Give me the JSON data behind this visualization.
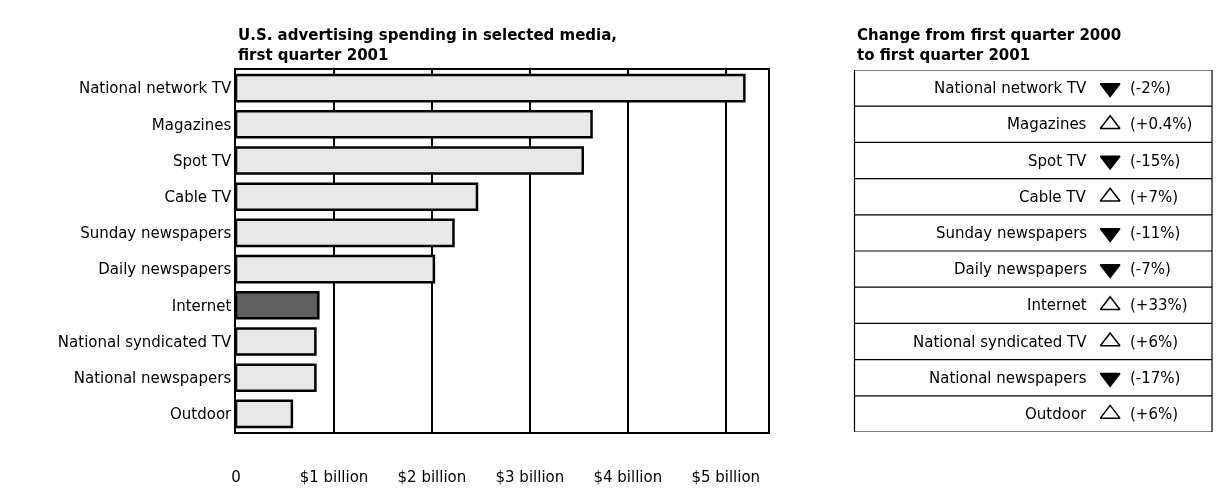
{
  "chart_data": [
    {
      "type": "bar",
      "orientation": "horizontal",
      "title": "U.S. advertising spending in selected media,\nfirst quarter 2001",
      "categories": [
        "National network TV",
        "Magazines",
        "Spot TV",
        "Cable TV",
        "Sunday newspapers",
        "Daily newspapers",
        "Internet",
        "National syndicated TV",
        "National newspapers",
        "Outdoor"
      ],
      "values": [
        5.19,
        3.63,
        3.54,
        2.46,
        2.22,
        2.02,
        0.84,
        0.81,
        0.81,
        0.57
      ],
      "colors": [
        "#e8e8e8",
        "#e8e8e8",
        "#e8e8e8",
        "#e8e8e8",
        "#e8e8e8",
        "#e8e8e8",
        "#606060",
        "#e8e8e8",
        "#e8e8e8",
        "#e8e8e8"
      ],
      "xlim": [
        0,
        5.43
      ],
      "xticks": [
        0,
        {
          "value": 1,
          "label": "$1 billion"
        },
        {
          "value": 2,
          "label": "$2 billion"
        },
        {
          "value": 3,
          "label": "$3 billion"
        },
        {
          "value": 4,
          "label": "$4 billion"
        },
        {
          "value": 5,
          "label": "$5 billion"
        }
      ],
      "grid": "x"
    },
    {
      "type": "other",
      "title": "Change from first quarter 2000\nto first quarter 2001",
      "categories": [
        "National network TV",
        "Magazines",
        "Spot TV",
        "Cable TV",
        "Sunday newspapers",
        "Daily newspapers",
        "Internet",
        "National syndicated TV",
        "National newspapers",
        "Outdoor"
      ],
      "values": [
        -2,
        0.4,
        -15,
        7,
        -11,
        -7,
        33,
        6,
        -17,
        6
      ],
      "value_labels": [
        "(-2%)",
        "(+0.4%)",
        "(-15%)",
        "(+7%)",
        "(-11%)",
        "(-7%)",
        "(+33%)",
        "(+6%)",
        "(-17%)",
        "(+6%)"
      ]
    }
  ]
}
